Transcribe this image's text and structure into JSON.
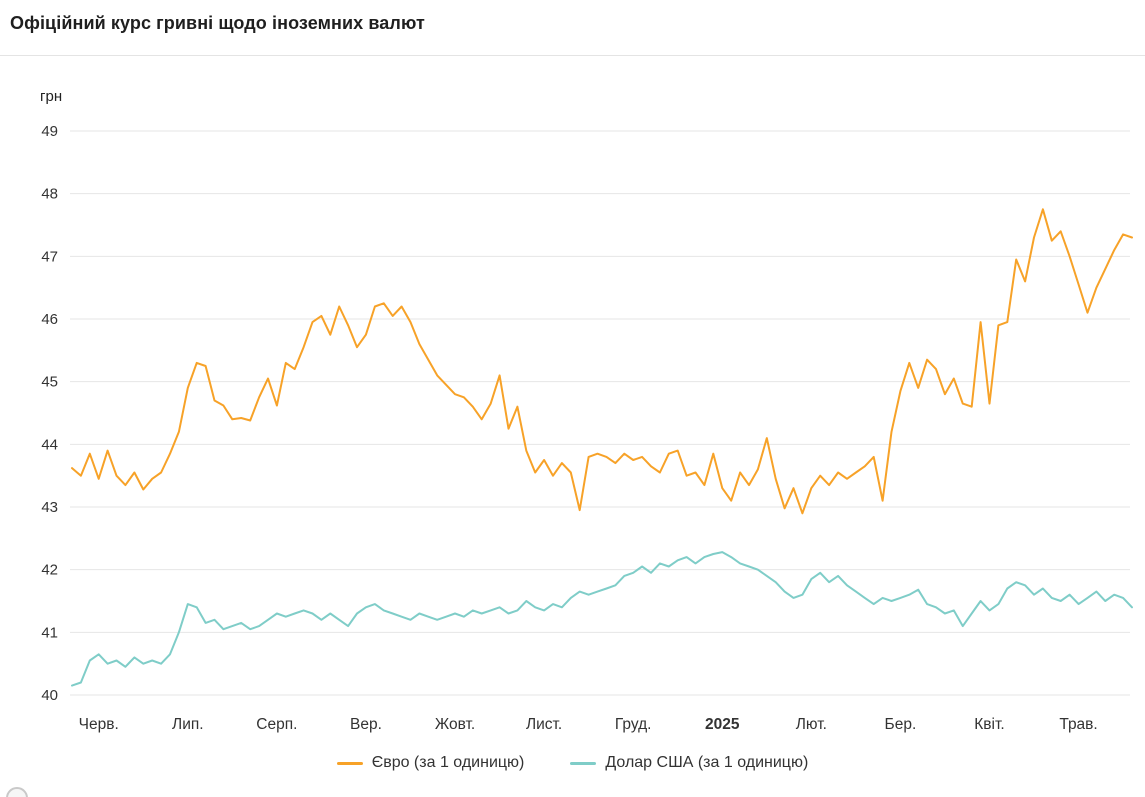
{
  "header": {
    "title": "Офіційний курс гривні щодо іноземних валют"
  },
  "chart_data": {
    "type": "line",
    "title": "Офіційний курс гривні щодо іноземних валют",
    "y_axis_label": "грн",
    "ylim": [
      40,
      49
    ],
    "y_ticks": [
      40,
      41,
      42,
      43,
      44,
      45,
      46,
      47,
      48,
      49
    ],
    "x_tick_labels": [
      "Черв.",
      "Лип.",
      "Серп.",
      "Вер.",
      "Жовт.",
      "Лист.",
      "Груд.",
      "2025",
      "Лют.",
      "Бер.",
      "Квіт.",
      "Трав."
    ],
    "bold_x_tick": "2025",
    "grid": true,
    "legend_position": "bottom",
    "colors": {
      "grid": "#e6e6e6",
      "axis_text": "#333333",
      "euro": "#F7A228",
      "usd": "#7FCDC8"
    },
    "series": [
      {
        "name": "Євро (за 1 одиницю)",
        "color": "#F7A228",
        "values": [
          43.62,
          43.5,
          43.85,
          43.45,
          43.9,
          43.5,
          43.35,
          43.55,
          43.28,
          43.45,
          43.55,
          43.85,
          44.2,
          44.9,
          45.3,
          45.25,
          44.7,
          44.62,
          44.4,
          44.42,
          44.38,
          44.75,
          45.05,
          44.62,
          45.3,
          45.2,
          45.55,
          45.95,
          46.05,
          45.75,
          46.2,
          45.9,
          45.55,
          45.75,
          46.2,
          46.25,
          46.05,
          46.2,
          45.95,
          45.6,
          45.35,
          45.1,
          44.95,
          44.8,
          44.75,
          44.6,
          44.4,
          44.65,
          45.1,
          44.25,
          44.6,
          43.9,
          43.55,
          43.75,
          43.5,
          43.7,
          43.55,
          42.95,
          43.8,
          43.85,
          43.8,
          43.7,
          43.85,
          43.75,
          43.8,
          43.65,
          43.55,
          43.85,
          43.9,
          43.5,
          43.55,
          43.35,
          43.85,
          43.3,
          43.1,
          43.55,
          43.35,
          43.6,
          44.1,
          43.45,
          42.98,
          43.3,
          42.9,
          43.3,
          43.5,
          43.35,
          43.55,
          43.45,
          43.55,
          43.65,
          43.8,
          43.1,
          44.2,
          44.85,
          45.3,
          44.9,
          45.35,
          45.2,
          44.8,
          45.05,
          44.65,
          44.6,
          45.95,
          44.65,
          45.9,
          45.95,
          46.95,
          46.6,
          47.3,
          47.75,
          47.25,
          47.4,
          47.0,
          46.55,
          46.1,
          46.5,
          46.8,
          47.1,
          47.35,
          47.3
        ]
      },
      {
        "name": "Долар США (за 1 одиницю)",
        "color": "#7FCDC8",
        "values": [
          40.15,
          40.2,
          40.55,
          40.65,
          40.5,
          40.55,
          40.45,
          40.6,
          40.5,
          40.55,
          40.5,
          40.65,
          41.0,
          41.45,
          41.4,
          41.15,
          41.2,
          41.05,
          41.1,
          41.15,
          41.05,
          41.1,
          41.2,
          41.3,
          41.25,
          41.3,
          41.35,
          41.3,
          41.2,
          41.3,
          41.2,
          41.1,
          41.3,
          41.4,
          41.45,
          41.35,
          41.3,
          41.25,
          41.2,
          41.3,
          41.25,
          41.2,
          41.25,
          41.3,
          41.25,
          41.35,
          41.3,
          41.35,
          41.4,
          41.3,
          41.35,
          41.5,
          41.4,
          41.35,
          41.45,
          41.4,
          41.55,
          41.65,
          41.6,
          41.65,
          41.7,
          41.75,
          41.9,
          41.95,
          42.05,
          41.95,
          42.1,
          42.05,
          42.15,
          42.2,
          42.1,
          42.2,
          42.25,
          42.28,
          42.2,
          42.1,
          42.05,
          42.0,
          41.9,
          41.8,
          41.65,
          41.55,
          41.6,
          41.85,
          41.95,
          41.8,
          41.9,
          41.75,
          41.65,
          41.55,
          41.45,
          41.55,
          41.5,
          41.55,
          41.6,
          41.68,
          41.45,
          41.4,
          41.3,
          41.35,
          41.1,
          41.3,
          41.5,
          41.35,
          41.45,
          41.7,
          41.8,
          41.75,
          41.6,
          41.7,
          41.55,
          41.5,
          41.6,
          41.45,
          41.55,
          41.65,
          41.5,
          41.6,
          41.55,
          41.4
        ]
      }
    ]
  }
}
